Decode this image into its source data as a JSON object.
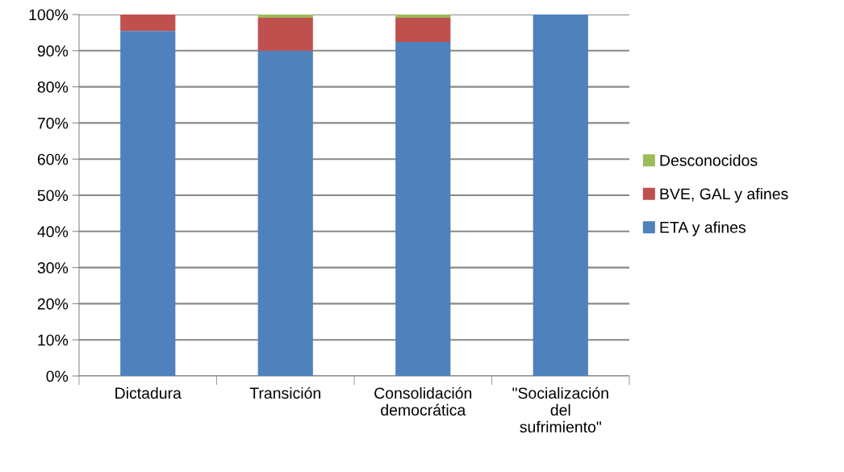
{
  "chart_data": {
    "type": "bar",
    "stacked": true,
    "categories": [
      "Dictadura",
      "Transición",
      "Consolidación\ndemocrática",
      "\"Socialización\ndel\nsufrimiento\""
    ],
    "series": [
      {
        "name": "ETA y afines",
        "color": "#4f81bd",
        "values": [
          95.5,
          90,
          92.4,
          100
        ]
      },
      {
        "name": "BVE, GAL y afines",
        "color": "#c0504d",
        "values": [
          4.5,
          9.1,
          6.7,
          0
        ]
      },
      {
        "name": "Desconocidos",
        "color": "#9bbb59",
        "values": [
          0,
          0.9,
          0.9,
          0
        ]
      }
    ],
    "ylim": [
      0,
      100
    ],
    "yticks": [
      {
        "value": 0,
        "label": "0%"
      },
      {
        "value": 10,
        "label": "10%"
      },
      {
        "value": 20,
        "label": "20%"
      },
      {
        "value": 30,
        "label": "30%"
      },
      {
        "value": 40,
        "label": "40%"
      },
      {
        "value": 50,
        "label": "50%"
      },
      {
        "value": 60,
        "label": "60%"
      },
      {
        "value": 70,
        "label": "70%"
      },
      {
        "value": 80,
        "label": "80%"
      },
      {
        "value": 90,
        "label": "90%"
      },
      {
        "value": 100,
        "label": "100%"
      }
    ],
    "grid": "y",
    "legend": "right"
  }
}
